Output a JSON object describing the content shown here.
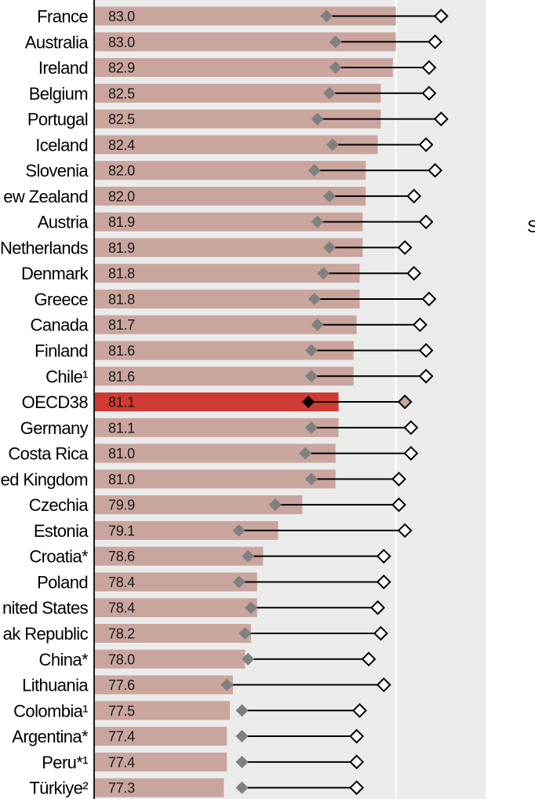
{
  "colors": {
    "panel_bg": "#ebebeb",
    "bar": "#c9a59e",
    "bar_highlight": "#cf3b33",
    "marker": "#808080",
    "marker_highlight": "#000000",
    "hollow_marker_highlight_fill": "#c9a59e",
    "axis": "#1a1a1a",
    "grid": "#ffffff"
  },
  "chart_data": {
    "type": "bar",
    "orientation": "horizontal",
    "categories": [
      "France",
      "Australia",
      "Ireland",
      "Belgium",
      "Portugal",
      "Iceland",
      "Slovenia",
      "ew Zealand",
      "Austria",
      "Netherlands",
      "Denmark",
      "Greece",
      "Canada",
      "Finland",
      "Chile¹",
      "OECD38",
      "Germany",
      "Costa Rica",
      "ed Kingdom",
      "Czechia",
      "Estonia",
      "Croatia*",
      "Poland",
      "nited States",
      "ak Republic",
      "China*",
      "Lithuania",
      "Colombia¹",
      "Argentina*",
      "Peru*¹",
      "Türkiye²"
    ],
    "highlight_category": "OECD38",
    "series": [
      {
        "marker": "bar",
        "values": [
          83.0,
          83.0,
          82.9,
          82.5,
          82.5,
          82.4,
          82.0,
          82.0,
          81.9,
          81.9,
          81.8,
          81.8,
          81.7,
          81.6,
          81.6,
          81.1,
          81.1,
          81.0,
          81.0,
          79.9,
          79.1,
          78.6,
          78.4,
          78.4,
          78.2,
          78.0,
          77.6,
          77.5,
          77.4,
          77.4,
          77.3
        ],
        "value_labels": [
          "83.0",
          "83.0",
          "82.9",
          "82.5",
          "82.5",
          "82.4",
          "82.0",
          "82.0",
          "81.9",
          "81.9",
          "81.8",
          "81.8",
          "81.7",
          "81.6",
          "81.6",
          "81.1",
          "81.1",
          "81.0",
          "81.0",
          "79.9",
          "79.1",
          "78.6",
          "78.4",
          "78.4",
          "78.2",
          "78.0",
          "77.6",
          "77.5",
          "77.4",
          "77.4",
          "77.3"
        ]
      },
      {
        "marker": "filled-diamond",
        "values": [
          80.7,
          81.0,
          81.0,
          80.8,
          80.4,
          80.9,
          80.3,
          80.8,
          80.4,
          80.8,
          80.6,
          80.3,
          80.4,
          80.2,
          80.2,
          80.1,
          80.2,
          80.0,
          80.2,
          79.0,
          77.8,
          78.1,
          77.8,
          78.2,
          78.0,
          78.1,
          77.4,
          77.9,
          77.9,
          77.9,
          77.9
        ]
      },
      {
        "marker": "hollow-diamond",
        "values": [
          84.5,
          84.3,
          84.1,
          84.1,
          84.5,
          84.0,
          84.3,
          83.6,
          84.0,
          83.3,
          83.6,
          84.1,
          83.8,
          84.0,
          84.0,
          83.3,
          83.5,
          83.5,
          83.1,
          83.1,
          83.3,
          82.6,
          82.6,
          82.4,
          82.5,
          82.1,
          82.6,
          81.8,
          81.7,
          81.7,
          81.7
        ]
      }
    ],
    "xlim": [
      73,
      86
    ],
    "grid": true,
    "xticks": [
      83,
      86
    ]
  },
  "edge_text": "S"
}
